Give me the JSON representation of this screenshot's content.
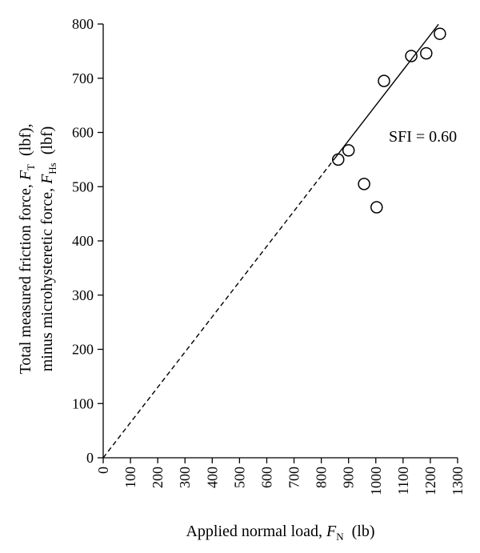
{
  "chart_data": {
    "type": "scatter",
    "title": "",
    "xlabel": {
      "text": "Applied normal load, ",
      "var": "F",
      "sub": "N",
      "unit": "(lb)"
    },
    "ylabel": {
      "line1": {
        "text": "Total measured friction force, ",
        "var": "F",
        "sub": "T",
        "unit": "(lbf),"
      },
      "line2": {
        "text": "minus microhysteretic force, ",
        "var": "F",
        "sub": "Hs",
        "unit": "(lbf)"
      }
    },
    "xlim": [
      0,
      1300
    ],
    "ylim": [
      0,
      800
    ],
    "x_ticks": [
      0,
      100,
      200,
      300,
      400,
      500,
      600,
      700,
      800,
      900,
      1000,
      1100,
      1200,
      1300
    ],
    "y_ticks": [
      0,
      100,
      200,
      300,
      400,
      500,
      600,
      700,
      800
    ],
    "grid": false,
    "points": [
      {
        "x": 862,
        "y": 550
      },
      {
        "x": 900,
        "y": 567
      },
      {
        "x": 957,
        "y": 505
      },
      {
        "x": 1003,
        "y": 462
      },
      {
        "x": 1030,
        "y": 695
      },
      {
        "x": 1130,
        "y": 741
      },
      {
        "x": 1185,
        "y": 746
      },
      {
        "x": 1235,
        "y": 782
      }
    ],
    "fit_line": {
      "slope": 0.65,
      "solid_from_x": 850,
      "solid_to_x": 1230,
      "dashed_from_x": 0,
      "dashed_to_x": 850
    },
    "annotation": "SFI = 0.60"
  },
  "colors": {
    "ink": "#000000",
    "background": "#ffffff"
  }
}
